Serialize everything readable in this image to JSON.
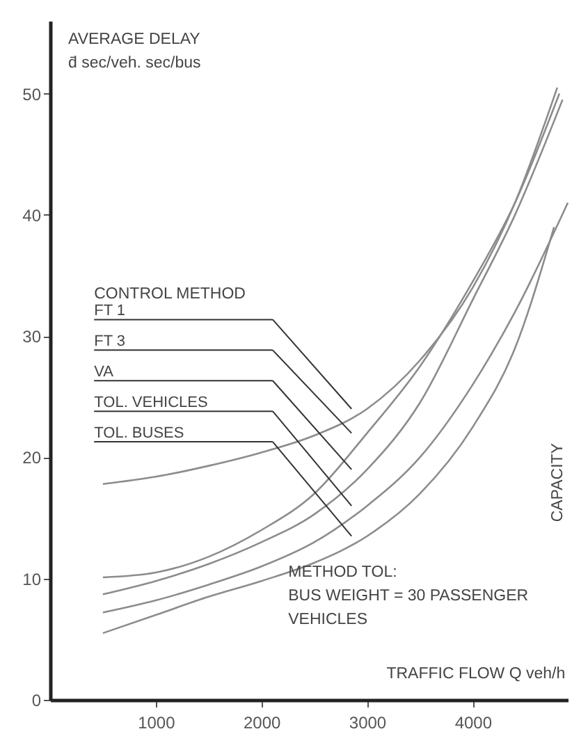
{
  "chart_data": {
    "type": "line",
    "xlabel": "TRAFFIC FLOW Q veh/h",
    "ylabel": "AVERAGE DELAY\nd̄ sec/veh. sec/bus",
    "legend_title": "CONTROL METHOD",
    "xlim": [
      0,
      4900
    ],
    "ylim": [
      0,
      56
    ],
    "xticks": [
      1000,
      2000,
      3000,
      4000
    ],
    "yticks": [
      0,
      10,
      20,
      30,
      40,
      50
    ],
    "grid": false,
    "line_style": "solid",
    "marker": "none",
    "series": [
      {
        "name": "FT 1",
        "color": "#8c8c8c",
        "x": [
          500,
          1000,
          1500,
          2000,
          2500,
          3000,
          3500,
          4000,
          4400,
          4800
        ],
        "values": [
          17.8,
          18.4,
          19.3,
          20.4,
          21.8,
          24,
          28,
          34,
          41,
          50.5
        ]
      },
      {
        "name": "FT 3",
        "color": "#8c8c8c",
        "x": [
          500,
          1000,
          1500,
          2000,
          2500,
          3000,
          3500,
          4000,
          4400,
          4820
        ],
        "values": [
          10.1,
          10.5,
          11.8,
          14,
          17,
          22,
          27.5,
          34.5,
          41,
          50
        ]
      },
      {
        "name": "VA",
        "color": "#8c8c8c",
        "x": [
          500,
          1000,
          1500,
          2000,
          2500,
          3000,
          3500,
          4000,
          4400,
          4850
        ],
        "values": [
          8.7,
          9.8,
          11.2,
          13,
          15.3,
          19,
          24.5,
          33,
          40,
          49.5
        ]
      },
      {
        "name": "TOL. VEHICLES",
        "color": "#8c8c8c",
        "x": [
          500,
          1000,
          1500,
          2000,
          2500,
          3000,
          3500,
          4000,
          4400,
          4900
        ],
        "values": [
          7.2,
          8.2,
          9.5,
          11,
          13,
          16,
          20,
          26,
          32,
          41
        ]
      },
      {
        "name": "TOL. BUSES",
        "color": "#8c8c8c",
        "x": [
          500,
          1000,
          1500,
          2000,
          2500,
          3000,
          3500,
          4000,
          4400,
          4770
        ],
        "values": [
          5.5,
          7,
          8.5,
          9.8,
          11.3,
          13.5,
          17,
          22.5,
          29,
          39
        ]
      }
    ],
    "annotations": [
      "CAPACITY",
      "METHOD TOL:\nBUS WEIGHT = 30 PASSENGER\nVEHICLES"
    ]
  }
}
